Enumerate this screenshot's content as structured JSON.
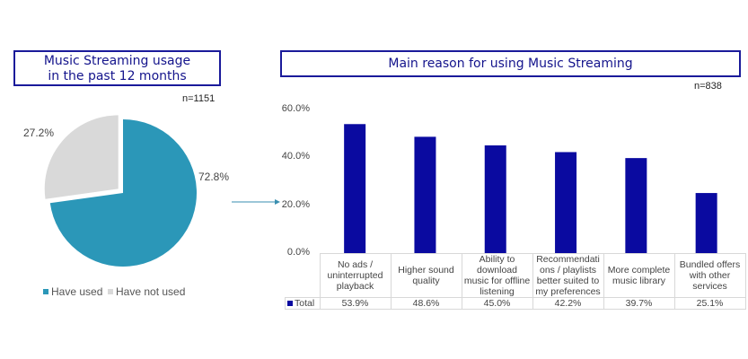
{
  "left": {
    "title_line1": "Music Streaming usage",
    "title_line2": "in the past 12 months",
    "n_label": "n=1151"
  },
  "right": {
    "title": "Main reason for using Music Streaming",
    "n_label": "n=838"
  },
  "colors": {
    "used": "#2b97b8",
    "not_used": "#d9d9d9",
    "bar": "#0a0aa0",
    "title": "#14148c"
  },
  "chart_data": [
    {
      "type": "pie",
      "title": "Music Streaming usage in the past 12 months",
      "slices": [
        {
          "label": "Have used",
          "value": 72.8,
          "display": "72.8%"
        },
        {
          "label": "Have not used",
          "value": 27.2,
          "display": "27.2%"
        }
      ],
      "legend": "bottom"
    },
    {
      "type": "bar",
      "title": "Main reason for using Music Streaming",
      "ylim": [
        0,
        60
      ],
      "yticks": [
        "0.0%",
        "20.0%",
        "40.0%",
        "60.0%"
      ],
      "series_name": "Total",
      "categories": [
        "No ads / uninterrupted playback",
        "Higher sound quality",
        "Ability to download music for offline listening",
        "Recommendations / playlists better suited to my preferences",
        "More complete music library",
        "Bundled offers with other services"
      ],
      "category_lines": [
        [
          "No ads /",
          "uninterrupted",
          "playback"
        ],
        [
          "Higher sound",
          "quality"
        ],
        [
          "Ability to",
          "download",
          "music for offline",
          "listening"
        ],
        [
          "Recommendati",
          "ons / playlists",
          "better suited to",
          "my preferences"
        ],
        [
          "More complete",
          "music library"
        ],
        [
          "Bundled offers",
          "with other",
          "services"
        ]
      ],
      "values": [
        53.9,
        48.6,
        45.0,
        42.2,
        39.7,
        25.1
      ],
      "labels": [
        "53.9%",
        "48.6%",
        "45.0%",
        "42.2%",
        "39.7%",
        "25.1%"
      ],
      "legend": "data-table"
    }
  ]
}
